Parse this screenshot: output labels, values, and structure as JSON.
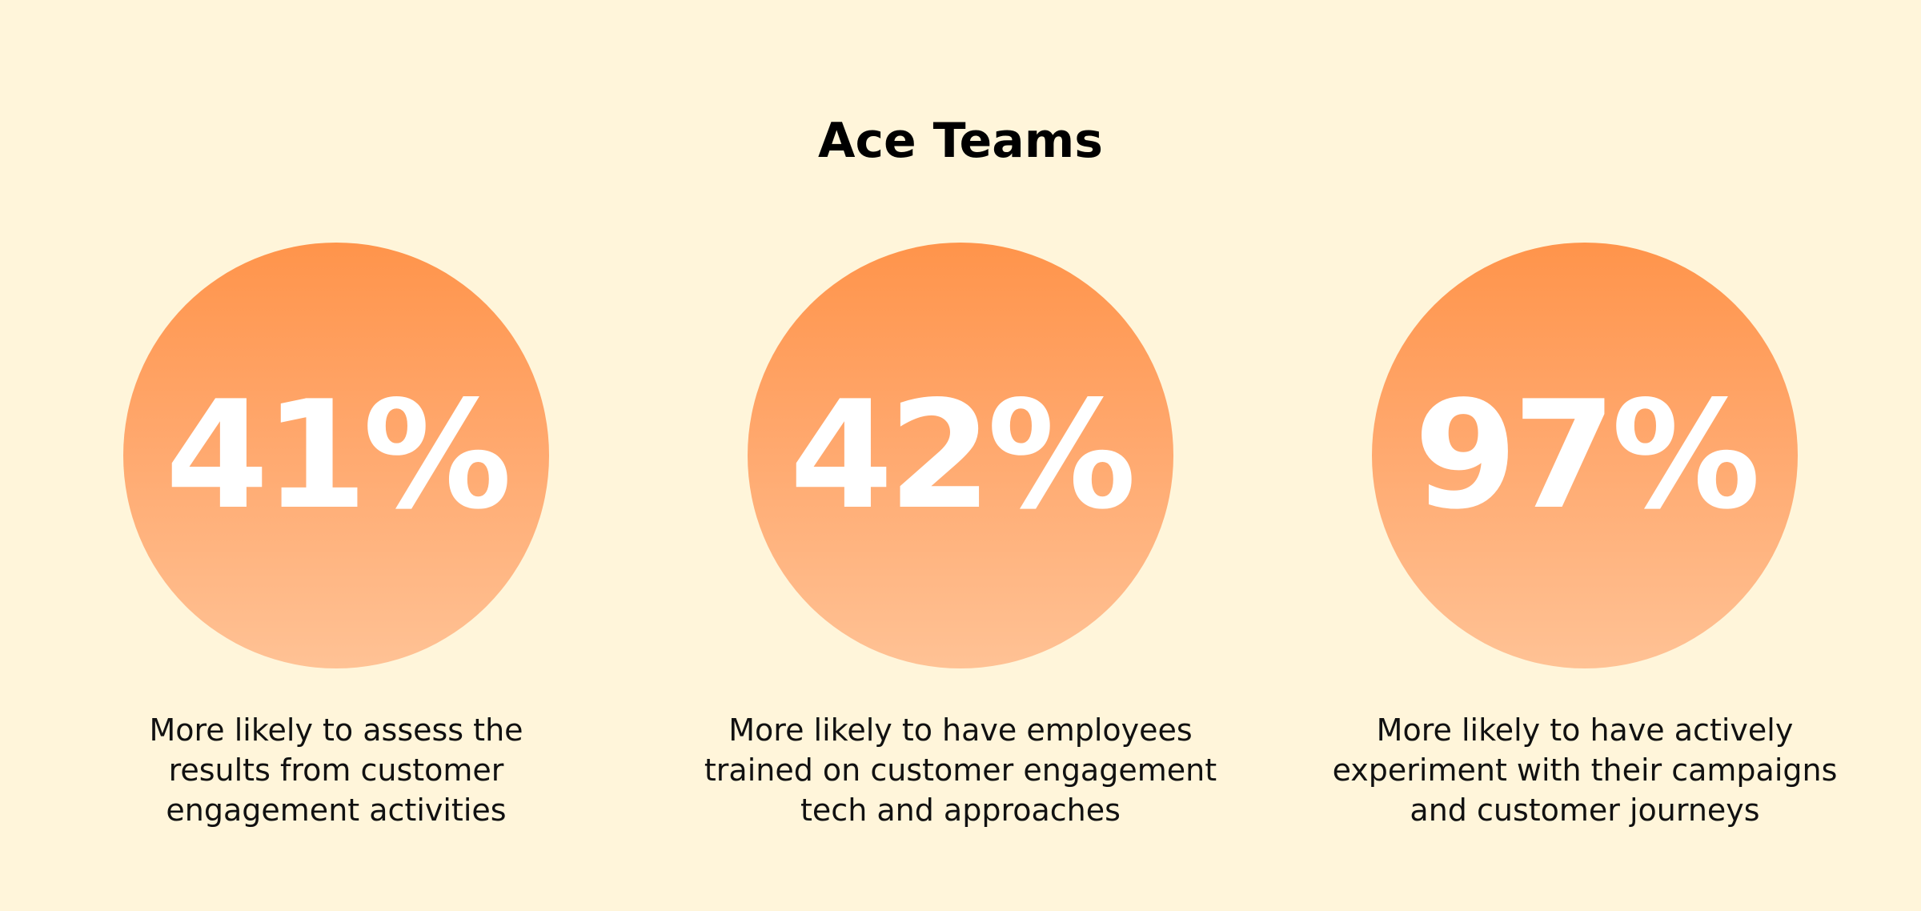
{
  "title": "Ace Teams",
  "colors": {
    "background": "#fff5da",
    "circle_top": "#ff944b",
    "circle_bottom": "#ffc295",
    "value_text": "#ffffff",
    "body_text": "#111111"
  },
  "stats": [
    {
      "value": "41%",
      "lines": [
        "More likely to assess the",
        "results from customer",
        "engagement activities"
      ]
    },
    {
      "value": "42%",
      "lines": [
        "More likely to have employees",
        "trained on customer engagement",
        "tech and approaches"
      ]
    },
    {
      "value": "97%",
      "lines": [
        "More likely to have actively",
        "experiment with their campaigns",
        "and customer journeys"
      ]
    }
  ]
}
